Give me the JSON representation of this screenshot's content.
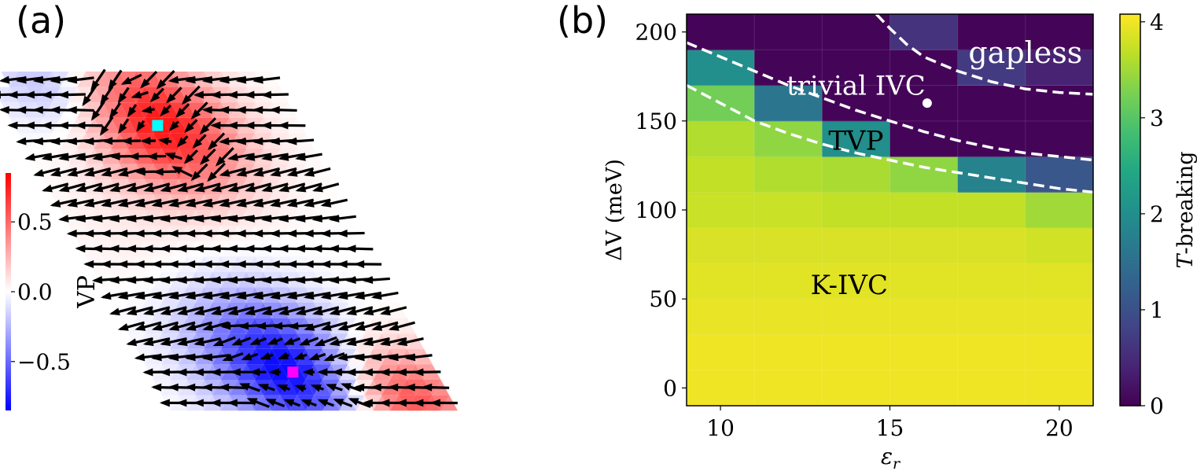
{
  "panel_labels": {
    "a": "(a)",
    "b": "(b)"
  },
  "chart_data": [
    {
      "type": "heatmap",
      "panel": "(a)",
      "description_note": "",
      "colorbar": {
        "label": "VP",
        "ticks": [
          0.5,
          0.0,
          -0.5
        ],
        "tick_labels": [
          "0.5",
          "0.0",
          "−0.5"
        ],
        "range": [
          -0.85,
          0.85
        ],
        "colormap": "bwr",
        "colors": {
          "low": "#0000ff",
          "mid": "#ffffff",
          "high": "#ff0000"
        }
      },
      "markers": [
        {
          "color": "#00ffff",
          "row": 3,
          "col": 8
        },
        {
          "color": "#ff00ff",
          "row": 19,
          "col": 8
        }
      ],
      "rows": 22,
      "cols": 17
    },
    {
      "type": "heatmap",
      "panel": "(b)",
      "xlabel": "ε_r",
      "xlabel_main": "ε",
      "xlabel_sub": "r",
      "ylabel": "ΔV (meV)",
      "xlim": [
        9,
        21
      ],
      "ylim": [
        -10,
        210
      ],
      "xticks": [
        10,
        15,
        20
      ],
      "yticks": [
        0,
        50,
        100,
        150,
        200
      ],
      "x": [
        10,
        12,
        14,
        16,
        18,
        20
      ],
      "y": [
        0,
        20,
        40,
        60,
        80,
        100,
        120,
        140,
        160,
        180,
        200
      ],
      "values": [
        [
          4.0,
          4.0,
          4.0,
          4.0,
          4.0,
          4.0
        ],
        [
          4.0,
          4.0,
          4.0,
          4.0,
          4.0,
          4.0
        ],
        [
          3.95,
          3.95,
          3.95,
          3.95,
          3.95,
          3.95
        ],
        [
          3.9,
          3.9,
          3.9,
          3.9,
          3.9,
          3.9
        ],
        [
          3.85,
          3.85,
          3.85,
          3.85,
          3.85,
          3.8
        ],
        [
          3.75,
          3.75,
          3.7,
          3.7,
          3.7,
          3.5
        ],
        [
          3.7,
          3.6,
          3.55,
          3.4,
          1.8,
          1.1
        ],
        [
          3.6,
          3.4,
          2.0,
          0.05,
          0.05,
          0.05
        ],
        [
          3.2,
          1.6,
          0.05,
          0.05,
          0.05,
          0.05
        ],
        [
          2.0,
          0.05,
          0.05,
          0.05,
          0.7,
          0.4
        ],
        [
          0.05,
          0.05,
          0.05,
          0.6,
          0.05,
          0.05
        ]
      ],
      "colorbar": {
        "label": "T-breaking",
        "label_italic": "T",
        "label_rest": "-breaking",
        "ticks": [
          0,
          1,
          2,
          3,
          4
        ],
        "range": [
          0,
          4.08
        ],
        "colormap": "viridis"
      },
      "boundaries": [
        {
          "style": "dashed",
          "color": "#ffffff",
          "points": [
            [
              9,
              170
            ],
            [
              10,
              160
            ],
            [
              11,
              150
            ],
            [
              12,
              143
            ],
            [
              13,
              137
            ],
            [
              14,
              132
            ],
            [
              15,
              128
            ],
            [
              16,
              124
            ],
            [
              17,
              121
            ],
            [
              18,
              118
            ],
            [
              19,
              115
            ],
            [
              20,
              112
            ],
            [
              21,
              110
            ]
          ]
        },
        {
          "style": "dashed",
          "color": "#ffffff",
          "points": [
            [
              9,
              194
            ],
            [
              10,
              186
            ],
            [
              11,
              178
            ],
            [
              12,
              170
            ],
            [
              13,
              163
            ],
            [
              14,
              156
            ],
            [
              15,
              150
            ],
            [
              16,
              144
            ],
            [
              17,
              139
            ],
            [
              18,
              135
            ],
            [
              19,
              132
            ],
            [
              20,
              130
            ],
            [
              21,
              128
            ]
          ]
        },
        {
          "style": "dashed",
          "color": "#ffffff",
          "points": [
            [
              14.6,
              210
            ],
            [
              15,
              202
            ],
            [
              15.5,
              193
            ],
            [
              16,
              186
            ],
            [
              17,
              178
            ],
            [
              18,
              172
            ],
            [
              19,
              168
            ],
            [
              20,
              166
            ],
            [
              21,
              165
            ]
          ]
        }
      ],
      "point_marker": {
        "x": 16.1,
        "y": 160,
        "color": "#ffffff"
      },
      "annotations": [
        {
          "text": "gapless",
          "x": 19.0,
          "y": 188,
          "color": "#ffffff"
        },
        {
          "text": "trivial IVC",
          "x": 14.0,
          "y": 170,
          "color": "#ffffff"
        },
        {
          "text": "TVP",
          "x": 14.0,
          "y": 139,
          "color": "#000000"
        },
        {
          "text": "K-IVC",
          "x": 13.8,
          "y": 58,
          "color": "#000000"
        }
      ]
    }
  ]
}
